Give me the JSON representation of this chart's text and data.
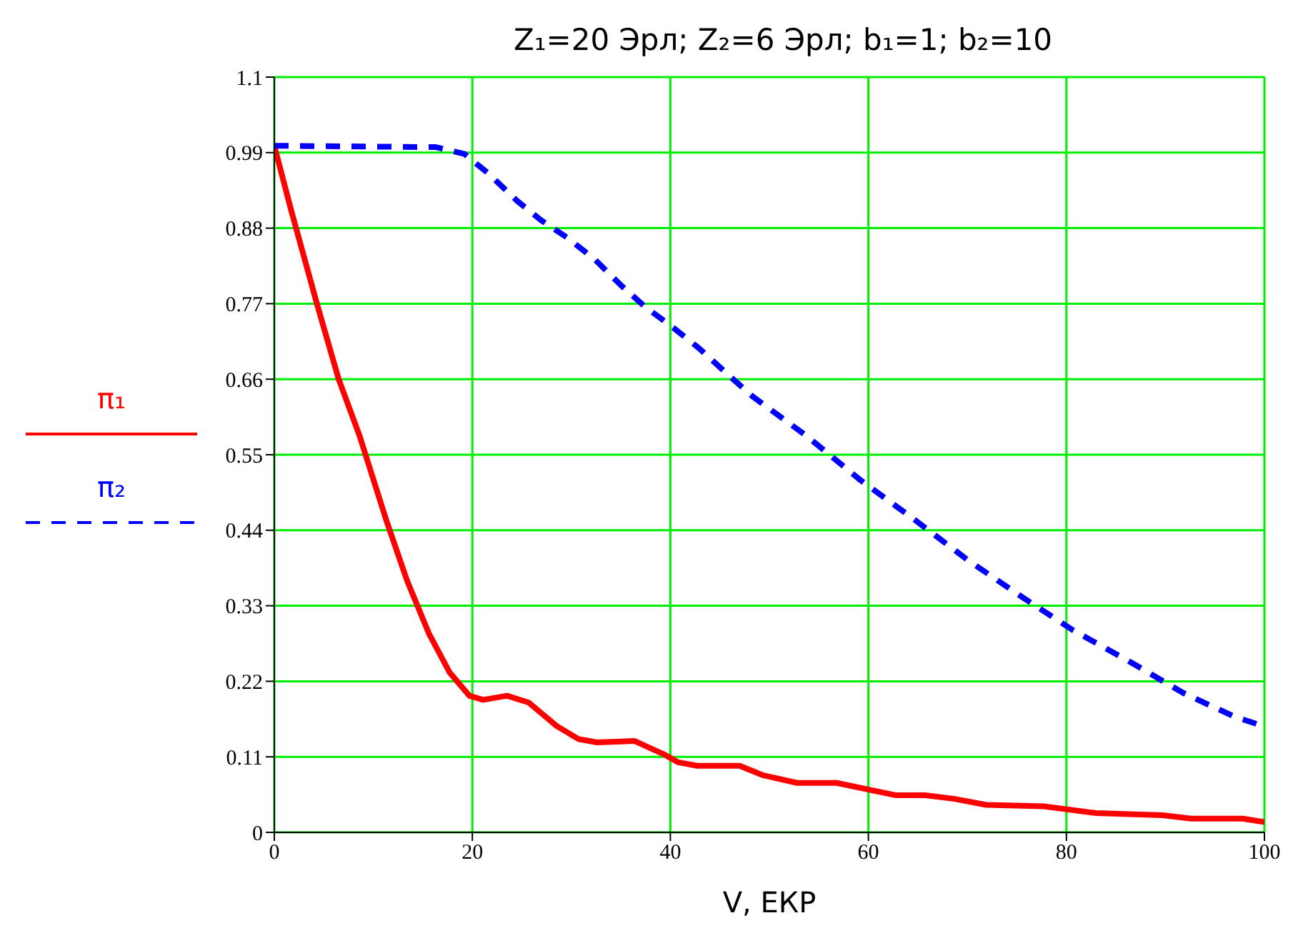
{
  "chart_data": {
    "type": "line",
    "title": "Z₁=20 Эрл; Z₂=6 Эрл; b₁=1; b₂=10",
    "xlabel": "V, ЕКР",
    "xlim": [
      0,
      100
    ],
    "xticks": [
      0,
      20,
      40,
      60,
      80,
      100
    ],
    "ylim": [
      0,
      1.1
    ],
    "yticks": [
      0,
      0.11,
      0.22,
      0.33,
      0.44,
      0.55,
      0.66,
      0.77,
      0.88,
      0.99,
      1.1
    ],
    "grid": true,
    "legend": "left",
    "marker": "none",
    "series": [
      {
        "name": "π₁",
        "color": "#ff0000",
        "line_style": "solid",
        "x": [
          0,
          1.7,
          4.3,
          6.5,
          8.6,
          11.3,
          13.4,
          15.6,
          17.7,
          19.7,
          21.1,
          23.5,
          25.7,
          28.5,
          30.7,
          32.6,
          36.4,
          39.3,
          40.8,
          42.7,
          47,
          49.4,
          52.8,
          56.8,
          62.8,
          65.7,
          68.6,
          71.9,
          77.7,
          83,
          89.7,
          92.6,
          97.8,
          100
        ],
        "values": [
          1.0,
          0.906,
          0.77,
          0.66,
          0.578,
          0.455,
          0.367,
          0.29,
          0.233,
          0.199,
          0.193,
          0.199,
          0.189,
          0.155,
          0.136,
          0.131,
          0.133,
          0.114,
          0.102,
          0.097,
          0.097,
          0.083,
          0.072,
          0.072,
          0.054,
          0.054,
          0.049,
          0.04,
          0.038,
          0.028,
          0.025,
          0.02,
          0.02,
          0.015
        ]
      },
      {
        "name": "π₂",
        "color": "#0000ff",
        "line_style": "dashed",
        "x": [
          0,
          16.3,
          19.2,
          21.6,
          24.5,
          26.9,
          29.7,
          32.4,
          35,
          37.4,
          40.3,
          42.9,
          45.8,
          48.3,
          53.7,
          59.2,
          64.7,
          70,
          75.5,
          80.6,
          86.6,
          91.8,
          96.9,
          99.8
        ],
        "values": [
          1.0,
          0.998,
          0.988,
          0.96,
          0.92,
          0.892,
          0.865,
          0.834,
          0.797,
          0.766,
          0.735,
          0.705,
          0.667,
          0.635,
          0.578,
          0.513,
          0.455,
          0.397,
          0.343,
          0.295,
          0.247,
          0.203,
          0.169,
          0.155
        ]
      }
    ]
  }
}
